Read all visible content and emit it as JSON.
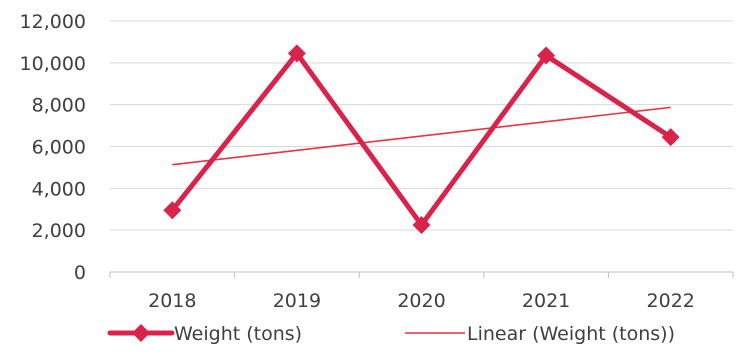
{
  "chart_data": {
    "type": "line",
    "categories": [
      "2018",
      "2019",
      "2020",
      "2021",
      "2022"
    ],
    "series": [
      {
        "name": "Weight (tons)",
        "values": [
          2950,
          10450,
          2250,
          10350,
          6450
        ],
        "color": "#d9234a",
        "marker": "diamond"
      }
    ],
    "trendline": {
      "name": "Linear (Weight (tons))",
      "type": "linear",
      "start": 5130,
      "end": 7870,
      "color": "#e8323f"
    },
    "ylim": [
      0,
      12000
    ],
    "yticks": [
      0,
      2000,
      4000,
      6000,
      8000,
      10000,
      12000
    ],
    "ytick_labels": [
      "0",
      "2,000",
      "4,000",
      "6,000",
      "8,000",
      "10,000",
      "12,000"
    ],
    "grid": true,
    "legend_position": "bottom"
  }
}
